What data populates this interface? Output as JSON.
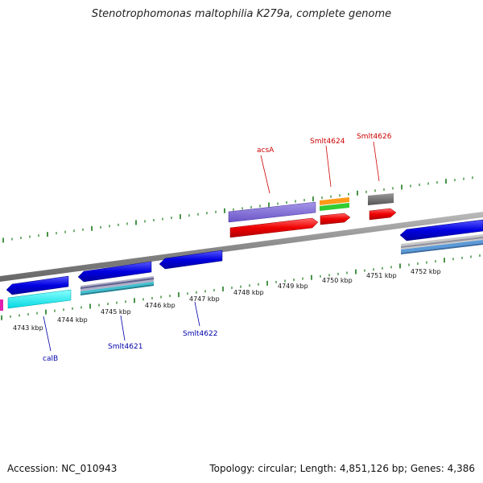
{
  "title": "Stenotrophomonas maltophilia K279a, complete genome",
  "footer": {
    "accession": "Accession: NC_010943",
    "summary": "Topology: circular; Length: 4,851,126 bp; Genes: 4,386"
  },
  "ticks": [
    "4743 kbp",
    "4744 kbp",
    "4745 kbp",
    "4746 kbp",
    "4747 kbp",
    "4748 kbp",
    "4749 kbp",
    "4750 kbp",
    "4751 kbp",
    "4752 kbp"
  ],
  "gene_labels": {
    "acsA": "acsA",
    "smlt4624": "Smlt4624",
    "smlt4626": "Smlt4626",
    "calB": "calB",
    "smlt4621": "Smlt4621",
    "smlt4622": "Smlt4622"
  },
  "colors": {
    "forward_label": "#cc0000",
    "reverse_label": "#0000aa",
    "tick": "#1a7a1a",
    "backbone": "#888888"
  }
}
